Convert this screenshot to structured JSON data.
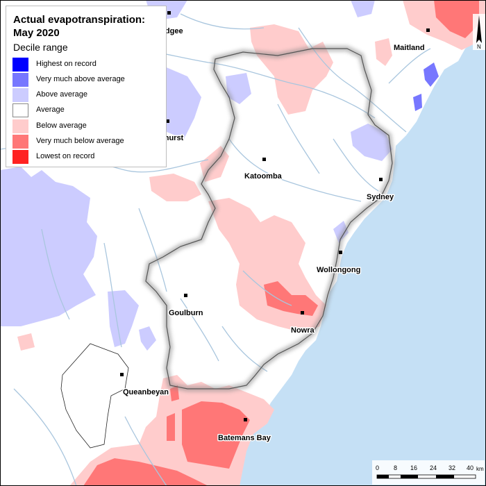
{
  "legend": {
    "title": "Actual evapotranspiration:\nMay 2020",
    "subtitle": "Decile range",
    "items": [
      {
        "label": "Highest on record",
        "color": "#0000ff"
      },
      {
        "label": "Very much above average",
        "color": "#7777ff"
      },
      {
        "label": "Above average",
        "color": "#ccccff"
      },
      {
        "label": "Average",
        "color": "#ffffff"
      },
      {
        "label": "Below average",
        "color": "#ffcccc"
      },
      {
        "label": "Very much below average",
        "color": "#ff7777"
      },
      {
        "label": "Lowest on record",
        "color": "#ff2222"
      }
    ]
  },
  "towns": [
    {
      "name": "Mudgee"
    },
    {
      "name": "Maitland"
    },
    {
      "name": "Bathurst"
    },
    {
      "name": "Katoomba"
    },
    {
      "name": "Sydney"
    },
    {
      "name": "Wollongong"
    },
    {
      "name": "Goulburn"
    },
    {
      "name": "Nowra"
    },
    {
      "name": "Queanbeyan"
    },
    {
      "name": "Batemans Bay"
    }
  ],
  "scale_bar": {
    "ticks": [
      "0",
      "8",
      "16",
      "24",
      "32",
      "40"
    ],
    "unit": "km"
  },
  "north_arrow": {
    "label": "N"
  },
  "colors": {
    "ocean": "#c5e0f5",
    "rivers": "#a9c6de",
    "boundary": "#555555"
  }
}
